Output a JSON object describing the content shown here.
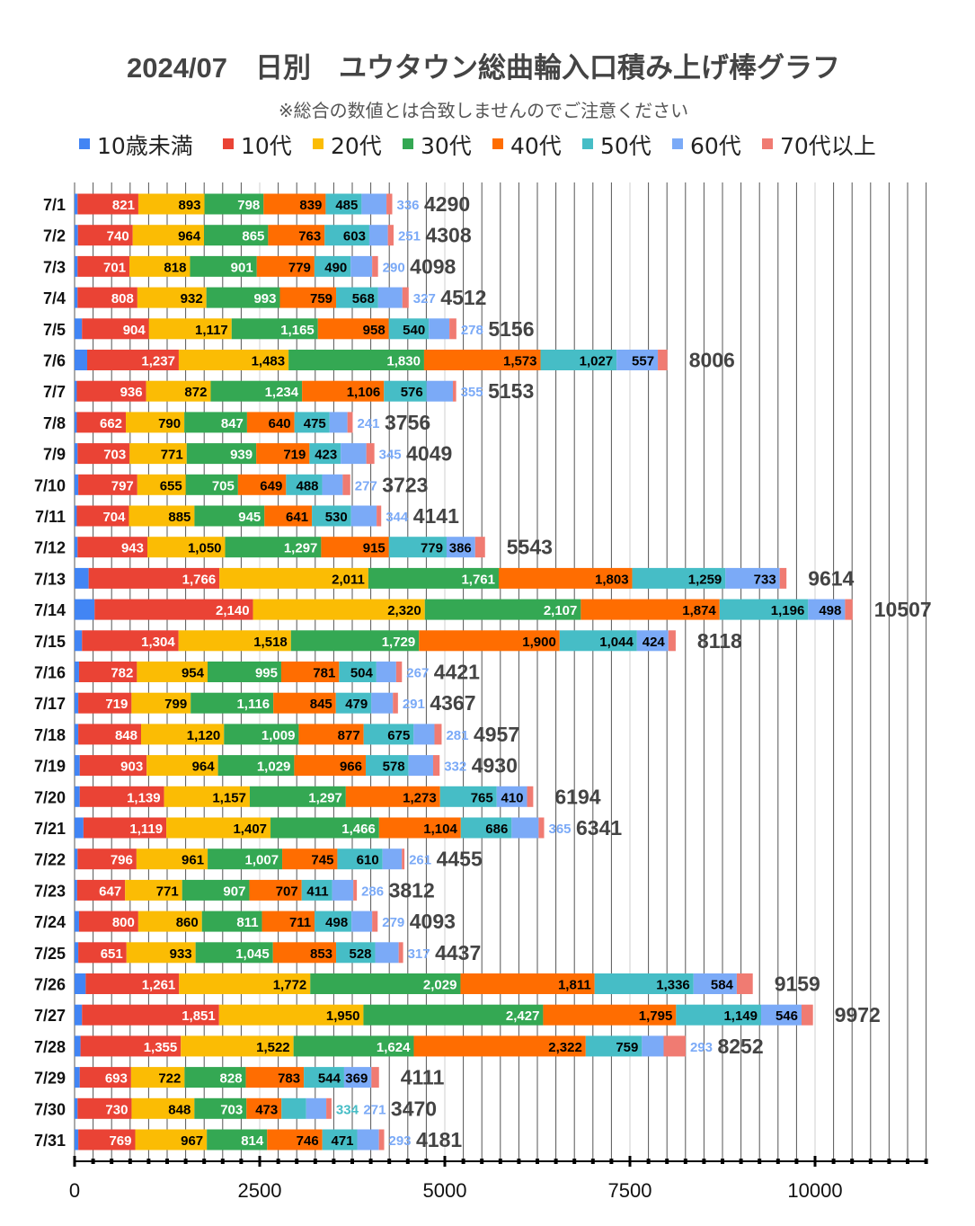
{
  "chart_data": {
    "type": "bar",
    "orientation": "horizontal",
    "stacked": true,
    "title": "2024/07　日別　ユウタウン総曲輪入口積み上げ棒グラフ",
    "subtitle": "※総合の数値とは合致しませんのでご注意ください",
    "legend_position": "top",
    "xlim": [
      0,
      11500
    ],
    "x_ticks": [
      0,
      2500,
      5000,
      7500,
      10000
    ],
    "grid": true,
    "categories": [
      "7/1",
      "7/2",
      "7/3",
      "7/4",
      "7/5",
      "7/6",
      "7/7",
      "7/8",
      "7/9",
      "7/10",
      "7/11",
      "7/12",
      "7/13",
      "7/14",
      "7/15",
      "7/16",
      "7/17",
      "7/18",
      "7/19",
      "7/20",
      "7/21",
      "7/22",
      "7/23",
      "7/24",
      "7/25",
      "7/26",
      "7/27",
      "7/28",
      "7/29",
      "7/30",
      "7/31"
    ],
    "series": [
      {
        "name": "10歳未満",
        "color": "#4285f4",
        "labeled": false,
        "values": [
          40,
          45,
          40,
          40,
          100,
          170,
          30,
          30,
          40,
          50,
          30,
          40,
          190,
          270,
          100,
          60,
          50,
          50,
          70,
          70,
          120,
          40,
          35,
          60,
          50,
          150,
          100,
          80,
          70,
          40,
          50
        ]
      },
      {
        "name": "10代",
        "color": "#ea4335",
        "labeled": true,
        "label_color": "#ffffff",
        "values": [
          821,
          740,
          701,
          808,
          904,
          1237,
          936,
          662,
          703,
          797,
          704,
          943,
          1766,
          2140,
          1304,
          782,
          719,
          848,
          903,
          1139,
          1119,
          796,
          647,
          800,
          651,
          1261,
          1851,
          1355,
          693,
          730,
          769
        ]
      },
      {
        "name": "20代",
        "color": "#fbbc04",
        "labeled": true,
        "label_color": "#000000",
        "values": [
          893,
          964,
          818,
          932,
          1117,
          1483,
          872,
          790,
          771,
          655,
          885,
          1050,
          2011,
          2320,
          1518,
          954,
          799,
          1120,
          964,
          1157,
          1407,
          961,
          771,
          860,
          933,
          1772,
          1950,
          1522,
          722,
          848,
          967
        ]
      },
      {
        "name": "30代",
        "color": "#34a853",
        "labeled": true,
        "label_color": "#ffffff",
        "values": [
          798,
          865,
          901,
          993,
          1165,
          1830,
          1234,
          847,
          939,
          705,
          945,
          1297,
          1761,
          2107,
          1729,
          995,
          1116,
          1009,
          1029,
          1297,
          1466,
          1007,
          907,
          811,
          1045,
          2029,
          2427,
          1624,
          828,
          703,
          814
        ]
      },
      {
        "name": "40代",
        "color": "#ff6d01",
        "labeled": true,
        "label_color": "#000000",
        "values": [
          839,
          763,
          779,
          759,
          958,
          1573,
          1106,
          640,
          719,
          649,
          641,
          915,
          1803,
          1874,
          1900,
          781,
          845,
          877,
          966,
          1273,
          1104,
          745,
          707,
          711,
          853,
          1811,
          1795,
          2322,
          783,
          473,
          746
        ]
      },
      {
        "name": "50代",
        "color": "#46bdc6",
        "labeled": true,
        "label_color": "#000000",
        "values": [
          485,
          603,
          490,
          568,
          540,
          1027,
          576,
          475,
          423,
          488,
          530,
          779,
          1259,
          1196,
          1044,
          504,
          479,
          675,
          578,
          765,
          686,
          610,
          411,
          498,
          528,
          1336,
          1149,
          759,
          544,
          334,
          471
        ]
      },
      {
        "name": "60代",
        "color": "#7baaf7",
        "labeled": true,
        "label_color": "#000000",
        "values": [
          336,
          251,
          290,
          327,
          278,
          557,
          355,
          241,
          345,
          277,
          344,
          386,
          733,
          498,
          424,
          267,
          291,
          281,
          332,
          410,
          365,
          261,
          286,
          279,
          317,
          584,
          546,
          293,
          369,
          271,
          293
        ]
      },
      {
        "name": "70代以上",
        "color": "#f07b72",
        "labeled": false,
        "values": [
          78,
          77,
          79,
          85,
          94,
          129,
          44,
          71,
          109,
          102,
          62,
          133,
          91,
          102,
          99,
          78,
          68,
          97,
          88,
          83,
          74,
          35,
          48,
          74,
          60,
          216,
          154,
          297,
          102,
          71,
          71
        ]
      }
    ],
    "totals": [
      4290,
      4308,
      4098,
      4512,
      5156,
      8006,
      5153,
      3756,
      4049,
      3723,
      4141,
      5543,
      9614,
      10507,
      8118,
      4421,
      4367,
      4957,
      4930,
      6194,
      6341,
      4455,
      3812,
      4093,
      4437,
      9159,
      9972,
      8252,
      4111,
      3470,
      4181
    ]
  }
}
